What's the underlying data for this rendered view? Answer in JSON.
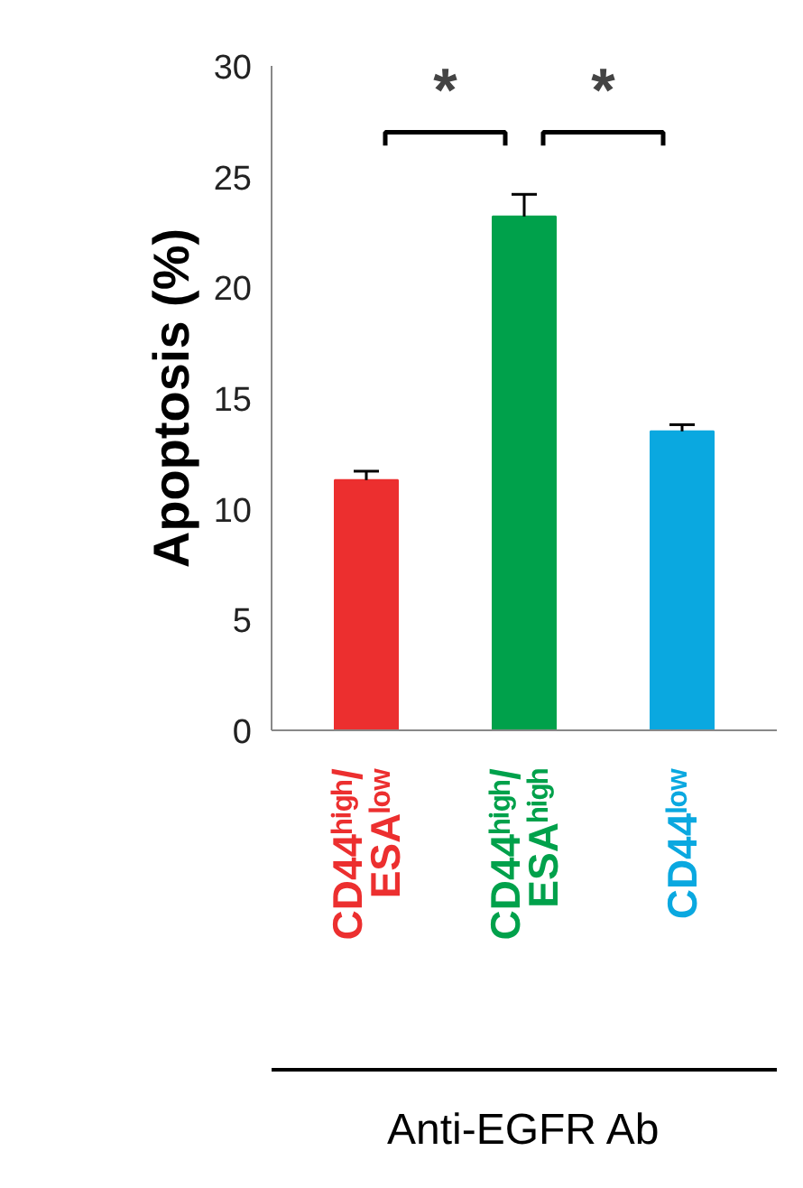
{
  "chart_data": {
    "type": "bar",
    "categories": [
      "CD44ʰⁱᵍʰ/ESAˡᵒʷ",
      "CD44ʰⁱᵍʰ/ESAʰⁱᵍʰ",
      "CD44ˡᵒʷ"
    ],
    "values": [
      11.3,
      23.2,
      13.5
    ],
    "errors": [
      [
        11.3,
        11.7
      ],
      [
        23.2,
        24.2
      ],
      [
        13.5,
        13.8
      ]
    ],
    "colors": [
      "#ec2f2f",
      "#00a14b",
      "#0aa8e0"
    ],
    "ylabel": "Apoptosis (%)",
    "xlabel": "Anti-EGFR Ab",
    "ylim": [
      0,
      30
    ],
    "yticks": [
      0,
      5,
      10,
      15,
      20,
      25,
      30
    ],
    "annotations": [
      "*",
      "*"
    ],
    "grid": false
  }
}
